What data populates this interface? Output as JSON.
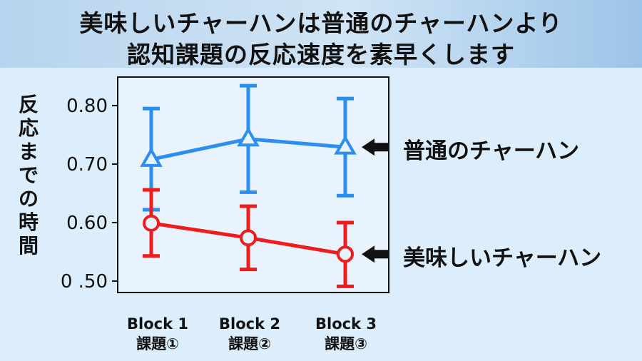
{
  "title": {
    "line1": "美味しいチャーハンは普通のチャーハンより",
    "line2": "認知課題の反応速度を素早くします"
  },
  "chart_data": {
    "type": "line",
    "ylabel": "反応までの時間",
    "categories": [
      "Block 1",
      "Block 2",
      "Block 3"
    ],
    "sublabels": [
      "課題①",
      "課題②",
      "課題③"
    ],
    "y_ticks": [
      "0.80",
      "0.70",
      "0.60",
      "0 .50"
    ],
    "ylim": [
      0.48,
      0.84
    ],
    "series": [
      {
        "name": "普通のチャーハン",
        "color": "#2b8ef0",
        "marker": "triangle",
        "values": [
          0.708,
          0.743,
          0.729
        ],
        "err_low": [
          0.622,
          0.652,
          0.646
        ],
        "err_high": [
          0.795,
          0.834,
          0.812
        ]
      },
      {
        "name": "美味しいチャーハン",
        "color": "#ee1c1c",
        "marker": "circle",
        "values": [
          0.599,
          0.574,
          0.546
        ],
        "err_low": [
          0.543,
          0.52,
          0.491
        ],
        "err_high": [
          0.656,
          0.628,
          0.6
        ]
      }
    ]
  }
}
